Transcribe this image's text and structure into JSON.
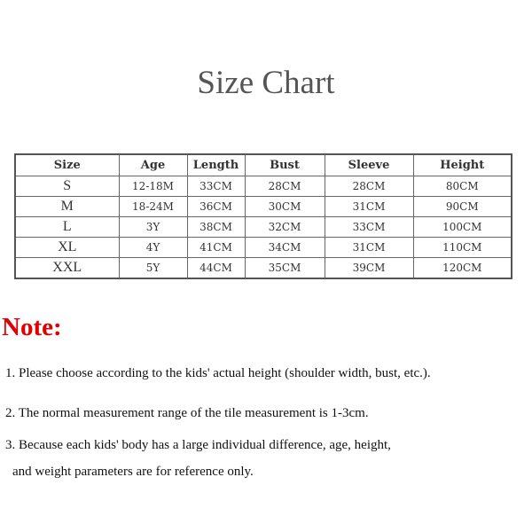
{
  "title": "Size Chart",
  "table": {
    "headers": [
      "Size",
      "Age",
      "Length",
      "Bust",
      "Sleeve",
      "Height"
    ],
    "rows": [
      [
        "S",
        "12-18M",
        "33CM",
        "28CM",
        "28CM",
        "80CM"
      ],
      [
        "M",
        "18-24M",
        "36CM",
        "30CM",
        "31CM",
        "90CM"
      ],
      [
        "L",
        "3Y",
        "38CM",
        "32CM",
        "33CM",
        "100CM"
      ],
      [
        "XL",
        "4Y",
        "41CM",
        "34CM",
        "31CM",
        "110CM"
      ],
      [
        "XXL",
        "5Y",
        "44CM",
        "35CM",
        "39CM",
        "120CM"
      ]
    ]
  },
  "note": {
    "heading": "Note:",
    "color": "#e00000",
    "lines": [
      "1. Please choose according to the kids' actual height (shoulder width, bust, etc.).",
      "2. The normal measurement range of the tile measurement is 1-3cm.",
      "3. Because each kids' body has a large individual difference, age, height,",
      "and weight parameters are for reference only."
    ]
  }
}
